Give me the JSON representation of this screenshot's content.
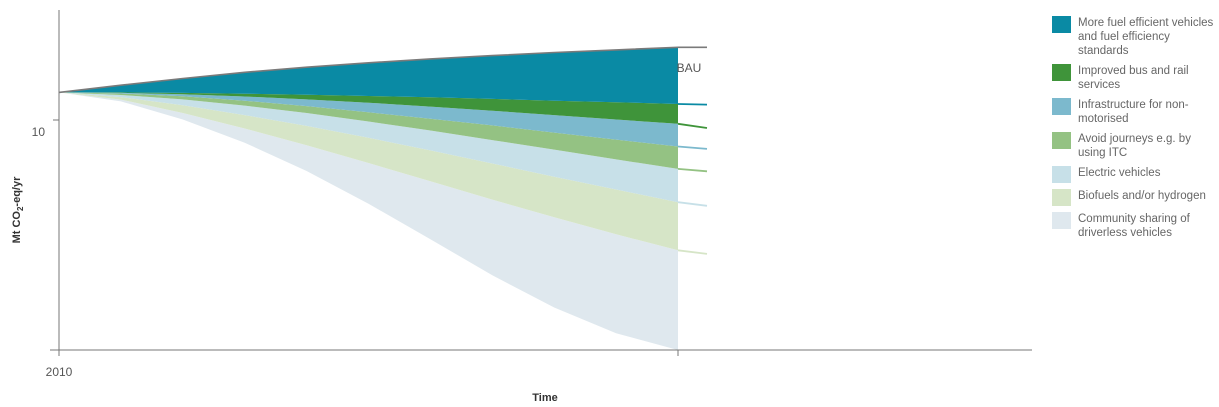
{
  "chart_data": {
    "type": "area",
    "xlabel": "Time",
    "ylabel": "Mt CO₂-eq/yr",
    "ylabel_parts": {
      "pre": "Mt CO",
      "sub": "2",
      "post": "-eq/yr"
    },
    "x_ticks": [
      {
        "value": 2010,
        "label": "2010"
      },
      {
        "value": 1,
        "label": ""
      }
    ],
    "y_ticks": [
      {
        "value": 10,
        "label": "10"
      }
    ],
    "ylim": [
      0,
      13.2
    ],
    "bau_label": "BAU",
    "x": [
      0,
      0.1,
      0.2,
      0.3,
      0.4,
      0.5,
      0.6,
      0.7,
      0.8,
      0.9,
      1.0
    ],
    "boundaries": [
      {
        "name": "BAU",
        "values": [
          10.0,
          10.28,
          10.54,
          10.78,
          10.98,
          11.15,
          11.3,
          11.43,
          11.55,
          11.65,
          11.75
        ]
      },
      {
        "values": [
          10.0,
          10.0,
          9.98,
          9.95,
          9.91,
          9.86,
          9.81,
          9.75,
          9.68,
          9.62,
          9.55
        ]
      },
      {
        "values": [
          10.0,
          9.98,
          9.93,
          9.84,
          9.73,
          9.6,
          9.45,
          9.29,
          9.12,
          8.95,
          8.78
        ]
      },
      {
        "values": [
          10.0,
          9.96,
          9.85,
          9.68,
          9.47,
          9.23,
          8.98,
          8.72,
          8.44,
          8.17,
          7.9
        ]
      },
      {
        "values": [
          10.0,
          9.9,
          9.73,
          9.49,
          9.2,
          8.87,
          8.52,
          8.15,
          7.78,
          7.4,
          7.03
        ]
      },
      {
        "values": [
          10.0,
          9.82,
          9.5,
          9.12,
          8.7,
          8.24,
          7.75,
          7.24,
          6.73,
          6.23,
          5.74
        ]
      },
      {
        "values": [
          10.0,
          9.72,
          9.2,
          8.6,
          7.95,
          7.26,
          6.55,
          5.84,
          5.15,
          4.49,
          3.87
        ]
      },
      {
        "values": [
          10.0,
          9.65,
          8.95,
          8.05,
          6.95,
          5.68,
          4.3,
          2.9,
          1.65,
          0.65,
          0.0
        ]
      }
    ],
    "series": [
      {
        "name": "More fuel efficient vehicles and fuel efficiency standards",
        "color": "#0a8aa4"
      },
      {
        "name": "Improved bus and rail services",
        "color": "#3f943a"
      },
      {
        "name": "Infrastructure for non-motorised",
        "color": "#7cb9cd"
      },
      {
        "name": "Avoid journeys e.g. by using ITC",
        "color": "#94c283"
      },
      {
        "name": "Electric vehicles",
        "color": "#c7e0e8"
      },
      {
        "name": "Biofuels and/or hydrogen",
        "color": "#d6e5c7"
      },
      {
        "name": "Community sharing of driverless vehicles",
        "color": "#dfe8ee"
      }
    ],
    "stub_colors": [
      "#7a7a7a",
      "#0a8aa4",
      "#3f943a",
      "#7cb9cd",
      "#94c283",
      "#c7e0e8",
      "#d6e5c7",
      "#d6e5c7"
    ],
    "grid": false,
    "legend_position": "right"
  }
}
